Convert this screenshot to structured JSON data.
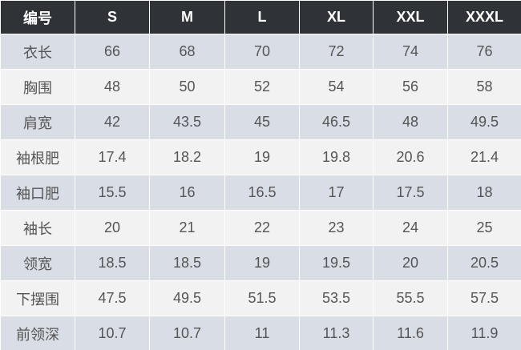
{
  "table": {
    "header": [
      "编号",
      "S",
      "M",
      "L",
      "XL",
      "XXL",
      "XXXL"
    ],
    "rows": [
      [
        "衣长",
        "66",
        "68",
        "70",
        "72",
        "74",
        "76"
      ],
      [
        "胸围",
        "48",
        "50",
        "52",
        "54",
        "56",
        "58"
      ],
      [
        "肩宽",
        "42",
        "43.5",
        "45",
        "46.5",
        "48",
        "49.5"
      ],
      [
        "袖根肥",
        "17.4",
        "18.2",
        "19",
        "19.8",
        "20.6",
        "21.4"
      ],
      [
        "袖口肥",
        "15.5",
        "16",
        "16.5",
        "17",
        "17.5",
        "18"
      ],
      [
        "袖长",
        "20",
        "21",
        "22",
        "23",
        "24",
        "25"
      ],
      [
        "领宽",
        "18.5",
        "18.5",
        "19",
        "19.5",
        "20",
        "20.5"
      ],
      [
        "下摆围",
        "47.5",
        "49.5",
        "51.5",
        "53.5",
        "55.5",
        "57.5"
      ],
      [
        "前领深",
        "10.7",
        "10.7",
        "11",
        "11.3",
        "11.6",
        "11.9"
      ]
    ]
  }
}
